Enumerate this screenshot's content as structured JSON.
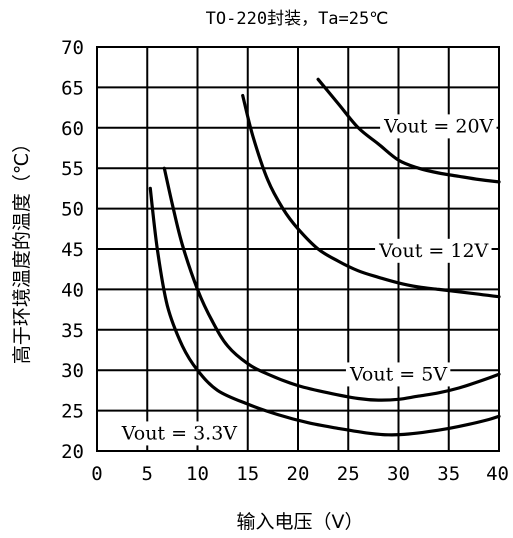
{
  "chart_data": {
    "type": "line",
    "title": "TO-220封装，Ta=25℃",
    "xlabel": "输入电压（V）",
    "ylabel": "高于环境温度的温度（℃）",
    "xlim": [
      0,
      40
    ],
    "ylim": [
      20,
      70
    ],
    "xticks": [
      0,
      5,
      10,
      15,
      20,
      25,
      30,
      35,
      40
    ],
    "yticks": [
      20,
      25,
      30,
      35,
      40,
      45,
      50,
      55,
      60,
      65,
      70
    ],
    "grid": true,
    "series": [
      {
        "name": "Vout = 20V",
        "x": [
          22,
          24,
          26,
          28,
          30,
          32,
          34,
          36,
          38,
          40
        ],
        "y": [
          66,
          63,
          60,
          58,
          56,
          55,
          54.4,
          54,
          53.6,
          53.3
        ]
      },
      {
        "name": "Vout = 12V",
        "x": [
          14.5,
          15.5,
          17,
          18.5,
          20,
          22,
          24,
          26,
          28,
          30,
          32,
          34,
          36,
          38,
          40
        ],
        "y": [
          64,
          59,
          53.5,
          50,
          47.5,
          45,
          43.5,
          42.3,
          41.5,
          40.8,
          40.3,
          40,
          39.7,
          39.4,
          39.1
        ]
      },
      {
        "name": "Vout = 5V",
        "x": [
          6.7,
          7.5,
          8.5,
          10,
          11.5,
          13,
          15,
          17,
          20,
          23,
          26,
          28,
          30,
          32,
          34,
          36,
          38,
          40
        ],
        "y": [
          55,
          50.5,
          45.5,
          40,
          36,
          33,
          30.8,
          29.5,
          28.1,
          27.2,
          26.5,
          26.3,
          26.4,
          26.8,
          27.2,
          27.8,
          28.6,
          29.5
        ]
      },
      {
        "name": "Vout = 3.3V",
        "x": [
          5.3,
          6,
          7,
          8.5,
          10,
          12,
          15,
          18,
          21,
          24,
          27,
          29,
          31,
          33,
          35,
          37,
          39,
          40
        ],
        "y": [
          52.5,
          45,
          38,
          33,
          30,
          27.5,
          25.8,
          24.5,
          23.5,
          22.8,
          22.2,
          22,
          22.1,
          22.4,
          22.8,
          23.3,
          23.9,
          24.3
        ]
      }
    ],
    "labels": [
      {
        "text": "Vout = 20V",
        "x": 34,
        "y": 60.3
      },
      {
        "text": "Vout = 12V",
        "x": 33.5,
        "y": 44.9
      },
      {
        "text": "Vout = 5V",
        "x": 30,
        "y": 29.6
      },
      {
        "text": "Vout = 3.3V",
        "x": 8.2,
        "y": 22.3
      }
    ]
  }
}
